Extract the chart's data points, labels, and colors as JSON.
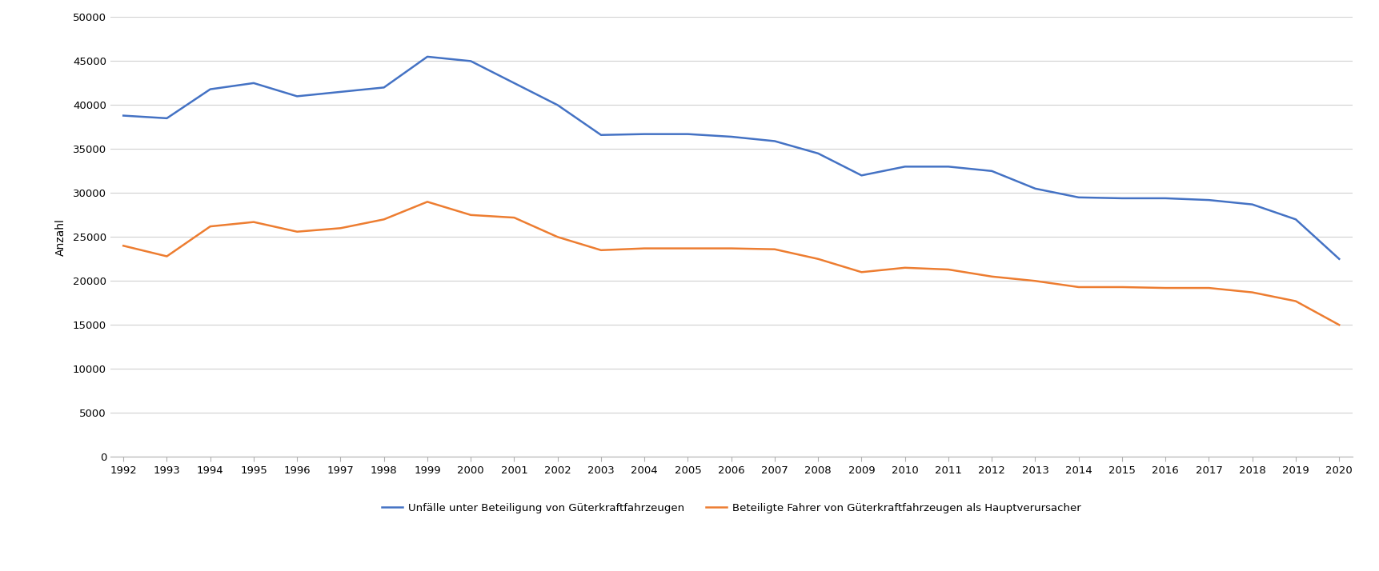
{
  "years": [
    1992,
    1993,
    1994,
    1995,
    1996,
    1997,
    1998,
    1999,
    2000,
    2001,
    2002,
    2003,
    2004,
    2005,
    2006,
    2007,
    2008,
    2009,
    2010,
    2011,
    2012,
    2013,
    2014,
    2015,
    2016,
    2017,
    2018,
    2019,
    2020
  ],
  "unfaelle": [
    38800,
    38500,
    41800,
    42500,
    41000,
    41500,
    42000,
    45500,
    45000,
    42500,
    40000,
    36600,
    36700,
    36700,
    36400,
    35900,
    34500,
    32000,
    33000,
    33000,
    32500,
    30500,
    29500,
    29400,
    29400,
    29200,
    28700,
    27000,
    22500
  ],
  "beteiligte": [
    24000,
    22800,
    26200,
    26700,
    25600,
    26000,
    27000,
    29000,
    27500,
    27200,
    25000,
    23500,
    23700,
    23700,
    23700,
    23600,
    22500,
    21000,
    21500,
    21300,
    20500,
    20000,
    19300,
    19300,
    19200,
    19200,
    18700,
    17700,
    15000
  ],
  "blue_color": "#4472C4",
  "orange_color": "#ED7D31",
  "ylabel": "Anzahl",
  "ylim": [
    0,
    50000
  ],
  "yticks": [
    0,
    5000,
    10000,
    15000,
    20000,
    25000,
    30000,
    35000,
    40000,
    45000,
    50000
  ],
  "legend_blue": "Unfälle unter Beteiligung von Güterkraftfahrzeugen",
  "legend_orange": "Beteiligte Fahrer von Güterkraftfahrzeugen als Hauptverursacher",
  "background_color": "#ffffff",
  "grid_color": "#d0d0d0",
  "line_width": 1.8,
  "legend_fontsize": 9.5,
  "tick_fontsize": 9.5,
  "ylabel_fontsize": 10
}
